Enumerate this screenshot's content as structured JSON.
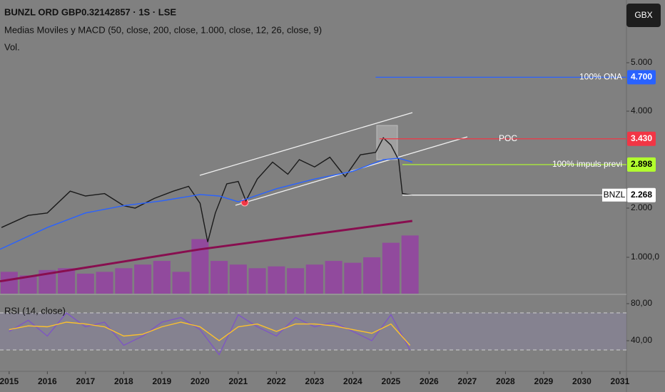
{
  "header": {
    "symbol": "BUNZL ORD GBP0.32142857 · 1S · LSE",
    "indicators": "Medias Moviles y MACD (50, close, 200, close, 1.000, close, 12, 26, close, 9)",
    "volume_label": "Vol.",
    "currency_button": "GBX"
  },
  "chart_data": [
    {
      "type": "line",
      "xlim": [
        2014.76,
        2031.17
      ],
      "xticks": [
        2015,
        2016,
        2017,
        2018,
        2019,
        2020,
        2021,
        2022,
        2023,
        2024,
        2025,
        2026,
        2027,
        2028,
        2029,
        2030,
        2031
      ],
      "ylim": [
        235,
        6294
      ],
      "yticks": [
        {
          "value": 5000,
          "label": "5.000"
        },
        {
          "value": 4000,
          "label": "4.000"
        },
        {
          "value": 2000,
          "label": "2.000"
        }
      ],
      "series": [
        {
          "color": "#1a1a1a",
          "x": [
            2014.8,
            2015.5,
            2016.0,
            2016.6,
            2017.0,
            2017.5,
            2018.0,
            2018.3,
            2018.8,
            2019.3,
            2019.7,
            2020.0,
            2020.2,
            2020.4,
            2020.7,
            2021.0,
            2021.2,
            2021.5,
            2021.9,
            2022.3,
            2022.6,
            2023.0,
            2023.4,
            2023.8,
            2024.2,
            2024.6,
            2024.8,
            2025.0,
            2025.2,
            2025.3,
            2025.56
          ],
          "values": [
            1600,
            1850,
            1900,
            2350,
            2250,
            2300,
            2050,
            2000,
            2200,
            2350,
            2450,
            2100,
            1300,
            1900,
            2500,
            2550,
            2150,
            2600,
            2950,
            2700,
            3000,
            2850,
            3050,
            2650,
            3100,
            3150,
            3450,
            3300,
            3000,
            2300,
            2268
          ]
        },
        {
          "color": "#2962ff",
          "x": [
            2014.76,
            2016,
            2017,
            2018,
            2019,
            2020,
            2020.5,
            2021,
            2022,
            2023,
            2024,
            2024.8,
            2025.2,
            2025.56
          ],
          "values": [
            1150,
            1600,
            1900,
            2050,
            2150,
            2280,
            2250,
            2130,
            2400,
            2600,
            2760,
            3000,
            3030,
            2950
          ]
        },
        {
          "color": "#880e4f",
          "x": [
            2014.76,
            2020,
            2025.56
          ],
          "values": [
            490,
            1150,
            1735
          ]
        }
      ],
      "volume": {
        "color": "#9c27b0",
        "y2lim": [
          0,
          8078
        ],
        "y2ticks": [
          {
            "value": 1000,
            "label": "1.000,0"
          }
        ],
        "x": [
          2015.0,
          2015.5,
          2016.0,
          2016.5,
          2017.0,
          2017.5,
          2018.0,
          2018.5,
          2019.0,
          2019.5,
          2020.0,
          2020.5,
          2021.0,
          2021.5,
          2022.0,
          2022.5,
          2023.0,
          2023.5,
          2024.0,
          2024.5,
          2025.0,
          2025.5
        ],
        "values": [
          600,
          500,
          650,
          700,
          550,
          600,
          700,
          800,
          900,
          600,
          1500,
          900,
          800,
          700,
          750,
          700,
          800,
          900,
          850,
          1000,
          1400,
          1600
        ]
      },
      "levels": [
        {
          "label": "100% ONA",
          "value": 4700,
          "value_label": "4.700",
          "x_start": 2024.6,
          "color": "#2962ff",
          "text_color": "#ffffff"
        },
        {
          "label": "POC",
          "value": 3430,
          "value_label": "3.430",
          "x_start": 2024.7,
          "color": "#f23645",
          "text_color": "#ffffff"
        },
        {
          "label": "100% impuls previ",
          "value": 2898,
          "value_label": "2.898",
          "x_start": 2025.3,
          "color": "#b2ff2e",
          "text_color": "#000000"
        },
        {
          "label": "BNZL",
          "value": 2268,
          "value_label": "2.268",
          "x_start": 2025.3,
          "color": "#ffffff",
          "text_color": "#000000"
        }
      ]
    },
    {
      "type": "line",
      "title": "RSI (14, close)",
      "xlim": [
        2014.76,
        2031.17
      ],
      "ylim": [
        7.7,
        88.5
      ],
      "yticks": [
        {
          "value": 80,
          "label": "80,00"
        },
        {
          "value": 40,
          "label": "40,00"
        }
      ],
      "bands": [
        30,
        70
      ],
      "series": [
        {
          "color": "#7e57c2",
          "x": [
            2015.0,
            2015.5,
            2016.0,
            2016.5,
            2017.0,
            2017.5,
            2018.0,
            2018.5,
            2019.0,
            2019.5,
            2020.0,
            2020.5,
            2021.0,
            2021.5,
            2022.0,
            2022.5,
            2023.0,
            2023.5,
            2024.0,
            2024.5,
            2025.0,
            2025.5
          ],
          "values": [
            50,
            62,
            45,
            70,
            55,
            60,
            35,
            45,
            60,
            65,
            52,
            25,
            68,
            55,
            45,
            65,
            55,
            60,
            50,
            40,
            68,
            30
          ]
        },
        {
          "color": "#fbc02d",
          "x": [
            2015.0,
            2015.5,
            2016.0,
            2016.5,
            2017.0,
            2017.5,
            2018.0,
            2018.5,
            2019.0,
            2019.5,
            2020.0,
            2020.5,
            2021.0,
            2021.5,
            2022.0,
            2022.5,
            2023.0,
            2023.5,
            2024.0,
            2024.5,
            2025.0,
            2025.5
          ],
          "values": [
            52,
            56,
            55,
            60,
            58,
            55,
            45,
            47,
            55,
            60,
            55,
            40,
            55,
            58,
            50,
            58,
            58,
            56,
            52,
            48,
            58,
            35
          ]
        }
      ]
    }
  ]
}
